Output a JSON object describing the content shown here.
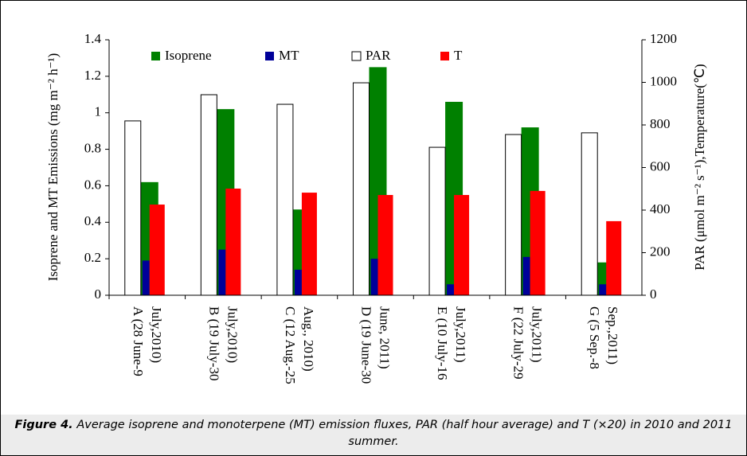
{
  "chart_data": {
    "type": "bar",
    "categories": [
      "A (28 June-9\nJuly,2010)",
      "B (19 July-30\nJuly,2010)",
      "C (12 Aug.-25\nAug., 2010)",
      "D (19 June-30\nJune, 2011)",
      "E (10 July-16\nJuly,2011)",
      "F (22 July-29\nJuly,2011)",
      "G (5 Sep.-8\nSep.,2011)"
    ],
    "series": [
      {
        "name": "Isoprene",
        "color": "#008000",
        "values": [
          0.62,
          1.02,
          0.47,
          1.25,
          1.06,
          0.92,
          0.18
        ]
      },
      {
        "name": "MT",
        "color": "#000099",
        "values": [
          0.19,
          0.25,
          0.14,
          0.2,
          0.06,
          0.21,
          0.06
        ]
      },
      {
        "name": "PAR",
        "color": "#ffffff",
        "axis": "y2",
        "values": [
          819,
          942,
          897,
          998,
          695,
          755,
          763
        ]
      },
      {
        "name": "T",
        "color": "#ff0000",
        "axis": "y2",
        "values": [
          426,
          501,
          482,
          471,
          471,
          490,
          348
        ]
      }
    ],
    "ylabel": "Isoprene and MT Emissions (mg m⁻² h⁻¹)",
    "y2label": "PAR (μmol m⁻² s⁻¹),Temperature(℃)",
    "ylim": [
      0,
      1.4
    ],
    "yticks": [
      0,
      0.2,
      0.4,
      0.6,
      0.8,
      1,
      1.2,
      1.4
    ],
    "y2lim": [
      0,
      1200
    ],
    "y2ticks": [
      0,
      200,
      400,
      600,
      800,
      1000,
      1200
    ],
    "caption_label": "Figure 4.",
    "caption": "Average isoprene and monoterpene (MT) emission fluxes, PAR (half hour average) and T (×20) in 2010 and 2011 summer."
  }
}
